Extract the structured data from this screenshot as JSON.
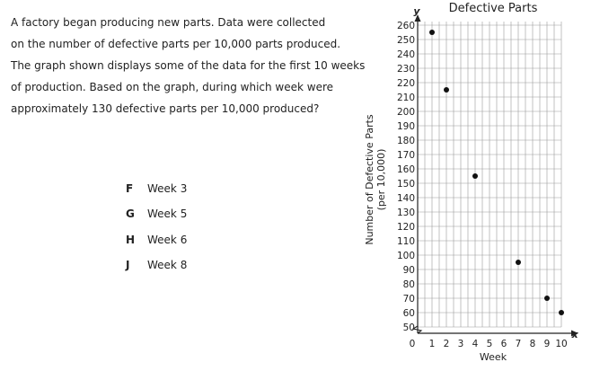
{
  "question": {
    "lines": [
      "A factory began producing new parts. Data were collected",
      "on the number of defective parts  per 10,000 parts produced.",
      "The graph shown displays some of the data for the first 10  weeks",
      "of production. Based on the graph, during which week were",
      "approximately 130 defective parts  per 10,000 produced?"
    ]
  },
  "choices": [
    {
      "letter": "F",
      "text": "Week 3"
    },
    {
      "letter": "G",
      "text": "Week 5"
    },
    {
      "letter": "H",
      "text": "Week 6"
    },
    {
      "letter": "J",
      "text": "Week 8"
    }
  ],
  "chart_data": {
    "type": "scatter",
    "title": "Defective Parts",
    "xlabel": "Week",
    "ylabel_lines": [
      "Number of Defective Parts",
      "(per 10,000)"
    ],
    "x_axis_letter": "x",
    "y_axis_letter": "y",
    "origin_label": "0",
    "xlim": [
      0,
      10
    ],
    "ylim": [
      50,
      260
    ],
    "x_ticks": [
      1,
      2,
      3,
      4,
      5,
      6,
      7,
      8,
      9,
      10
    ],
    "y_ticks": [
      50,
      60,
      70,
      80,
      90,
      100,
      110,
      120,
      130,
      140,
      150,
      160,
      170,
      180,
      190,
      200,
      210,
      220,
      230,
      240,
      250,
      260
    ],
    "grid": true,
    "points": [
      {
        "x": 1,
        "y": 255
      },
      {
        "x": 2,
        "y": 215
      },
      {
        "x": 4,
        "y": 155
      },
      {
        "x": 7,
        "y": 95
      },
      {
        "x": 9,
        "y": 70
      },
      {
        "x": 10,
        "y": 60
      }
    ]
  }
}
